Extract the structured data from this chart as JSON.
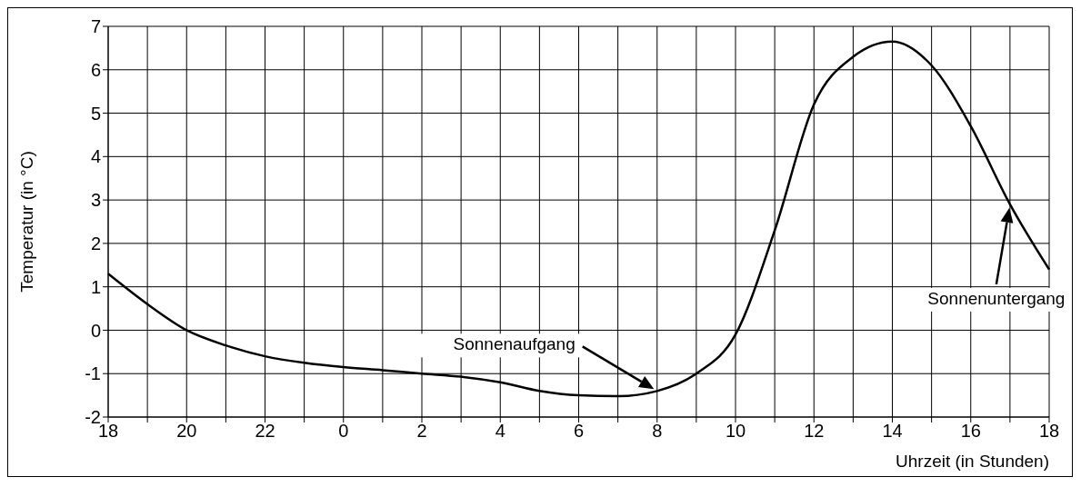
{
  "chart_data": {
    "type": "line",
    "ylabel": "Temperatur (in °C)",
    "xlabel": "Uhrzeit (in Stunden)",
    "categories": [
      "18",
      null,
      "20",
      null,
      "22",
      null,
      "0",
      null,
      "2",
      null,
      "4",
      null,
      "6",
      null,
      "8",
      null,
      "10",
      null,
      "12",
      null,
      "14",
      null,
      "16",
      null,
      "18"
    ],
    "series": [
      {
        "color": "#000000",
        "values": [
          1.3,
          0.6,
          0.0,
          -0.35,
          -0.6,
          -0.75,
          -0.85,
          -0.92,
          -1.0,
          -1.07,
          -1.2,
          -1.4,
          -1.5,
          -1.52,
          -1.4,
          -1.0,
          -0.1,
          2.3,
          5.2,
          6.3,
          6.65,
          6.1,
          4.7,
          2.9,
          1.4
        ]
      }
    ],
    "ylim": [
      -2,
      7
    ],
    "yticks": [
      -2,
      -1,
      0,
      1,
      2,
      3,
      4,
      5,
      6,
      7
    ],
    "grid": true,
    "marker": "none",
    "line_style": "solid",
    "annotations": [
      "Sonnenaufgang",
      "Sonnenuntergang"
    ]
  }
}
